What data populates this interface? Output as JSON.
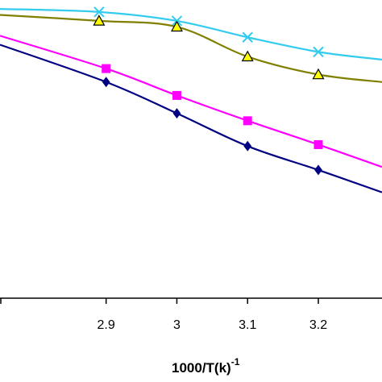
{
  "chart_data": {
    "type": "line",
    "title": "",
    "xlabel": "1000/T(k)",
    "xlabel_superscript": "-1",
    "ylabel": "",
    "xlim": [
      2.75,
      3.29
    ],
    "ylim": [
      0,
      1
    ],
    "x_ticks": [
      2.9,
      3.0,
      3.1,
      3.2
    ],
    "x_tick_labels": [
      "2.9",
      "3",
      "3.1",
      "3.2"
    ],
    "grid": false,
    "legend": "none",
    "series": [
      {
        "marker": "x",
        "color": "#33ccee",
        "points": [
          [
            2.75,
            0.97
          ],
          [
            2.89,
            0.96
          ],
          [
            3.0,
            0.93
          ],
          [
            3.1,
            0.875
          ],
          [
            3.2,
            0.826
          ],
          [
            3.29,
            0.8
          ]
        ]
      },
      {
        "marker": "triangle",
        "color": "#808000",
        "marker_fill": "#ffff00",
        "points": [
          [
            2.75,
            0.95
          ],
          [
            2.89,
            0.93
          ],
          [
            3.0,
            0.91
          ],
          [
            3.1,
            0.81
          ],
          [
            3.2,
            0.75
          ],
          [
            3.29,
            0.725
          ]
        ]
      },
      {
        "marker": "square",
        "color": "#ff00ff",
        "points": [
          [
            2.75,
            0.88
          ],
          [
            2.9,
            0.77
          ],
          [
            3.0,
            0.68
          ],
          [
            3.1,
            0.595
          ],
          [
            3.2,
            0.515
          ],
          [
            3.29,
            0.44
          ]
        ]
      },
      {
        "marker": "diamond",
        "color": "#000080",
        "points": [
          [
            2.75,
            0.85
          ],
          [
            2.9,
            0.725
          ],
          [
            3.0,
            0.62
          ],
          [
            3.1,
            0.51
          ],
          [
            3.2,
            0.43
          ],
          [
            3.29,
            0.355
          ]
        ]
      }
    ]
  }
}
